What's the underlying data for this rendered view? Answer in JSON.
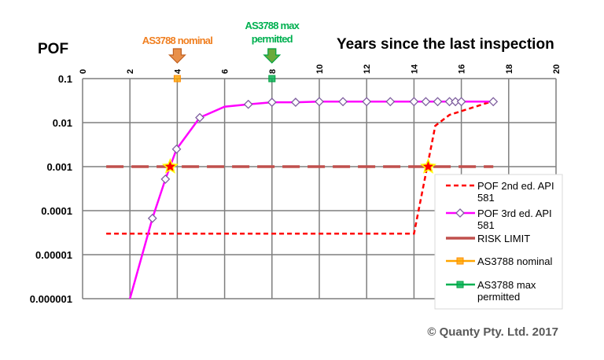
{
  "chart_data": {
    "type": "line",
    "title": "",
    "xlabel": "Years since the last inspection",
    "ylabel": "POF",
    "xlim": [
      0,
      20
    ],
    "ylim": [
      1e-06,
      0.1
    ],
    "yscale": "log",
    "grid": true,
    "legend_placement": "bottom-right",
    "xticks": [
      "0",
      "2",
      "4",
      "6",
      "8",
      "10",
      "12",
      "14",
      "16",
      "18",
      "20"
    ],
    "yticks": [
      "0.1",
      "0.01",
      "0.001",
      "0.0001",
      "0.00001",
      "0.000001"
    ],
    "series": [
      {
        "name": "POF 2nd ed. API 581",
        "color": "#ff0000",
        "style": "dashed",
        "x": [
          1,
          14,
          14.9,
          15.5,
          17.35
        ],
        "y": [
          3e-05,
          3e-05,
          0.0085,
          0.015,
          0.031
        ]
      },
      {
        "name": "POF 3rd ed. API 581",
        "color": "#ff00ff",
        "marker": "diamond",
        "x": [
          2,
          2.95,
          3.5,
          3.97,
          4.95,
          6,
          7,
          8,
          9,
          10,
          11,
          12,
          13,
          14,
          14.5,
          15,
          15.5,
          15.75,
          16,
          17.35
        ],
        "y": [
          1e-06,
          6.7e-05,
          0.00052,
          0.0025,
          0.013,
          0.023,
          0.026,
          0.029,
          0.029,
          0.03,
          0.03,
          0.03,
          0.03,
          0.03,
          0.03,
          0.03,
          0.03,
          0.03,
          0.03,
          0.03
        ],
        "markers_from_index": 1,
        "markers_skip": [
          5
        ]
      },
      {
        "name": "RISK LIMIT",
        "color": "#c0504d",
        "style": "long-dash",
        "x": [
          1,
          17.35
        ],
        "y": [
          0.001,
          0.001
        ]
      },
      {
        "name": "AS3788 nominal",
        "color": "#ffa500",
        "marker": "square",
        "x": [
          4
        ],
        "y": [
          0.1
        ]
      },
      {
        "name": "AS3788 max permitted",
        "color": "#00b050",
        "marker": "square",
        "x": [
          8
        ],
        "y": [
          0.1
        ]
      }
    ],
    "intersections": [
      {
        "x": 3.7,
        "y": 0.001
      },
      {
        "x": 14.6,
        "y": 0.001
      }
    ],
    "annotations": [
      {
        "text": "AS3788 nominal",
        "x": 4,
        "color": "#f07f20"
      },
      {
        "text_lines": [
          "AS3788 max",
          "permitted"
        ],
        "x": 8,
        "color": "#00b050"
      }
    ],
    "copyright": "© Quanty Pty. Ltd. 2017"
  }
}
